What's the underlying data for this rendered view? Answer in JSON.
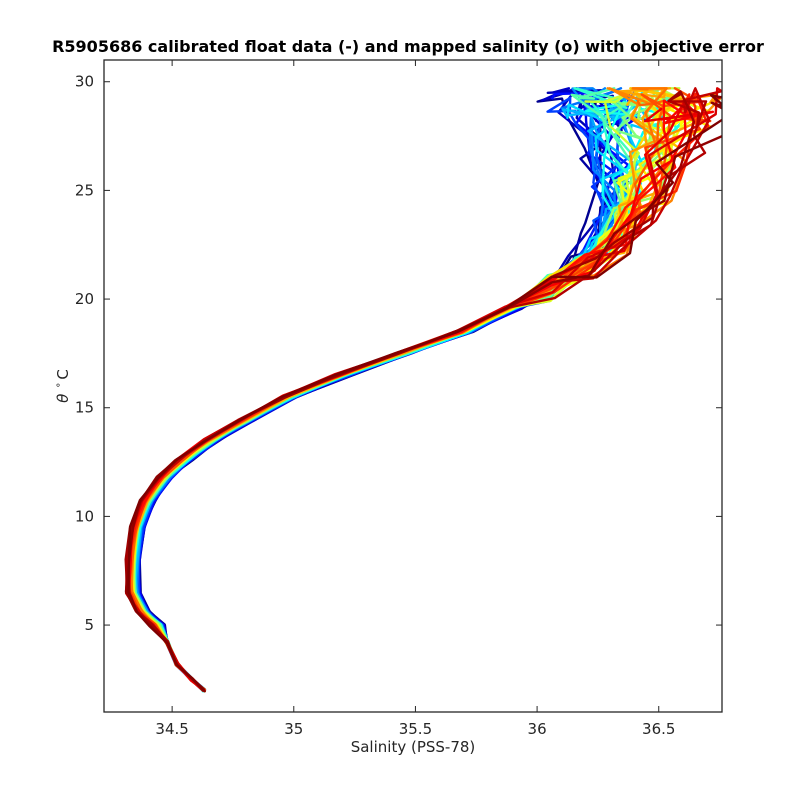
{
  "chart_data": {
    "type": "line",
    "title": "R5905686 calibrated float data (-) and mapped salinity (o) with objective error",
    "xlabel": "Salinity (PSS-78)",
    "ylabel_symbol": "θ",
    "ylabel_unit": "° C",
    "xlim": [
      34.22,
      36.76
    ],
    "ylim": [
      1.0,
      31.0
    ],
    "xticks": [
      34.5,
      35,
      35.5,
      36,
      36.5
    ],
    "xtick_labels": [
      "34.5",
      "35",
      "35.5",
      "36",
      "36.5"
    ],
    "yticks": [
      5,
      10,
      15,
      20,
      25,
      30
    ],
    "ytick_labels": [
      "5",
      "10",
      "15",
      "20",
      "25",
      "30"
    ],
    "grid": false,
    "colormap": "jet",
    "profile_count": 60,
    "reference_profile": {
      "salinity": [
        34.63,
        34.58,
        34.52,
        34.48,
        34.44,
        34.38,
        34.34,
        34.34,
        34.36,
        34.4,
        34.47,
        34.55,
        34.66,
        34.8,
        34.98,
        35.2,
        35.45,
        35.7,
        35.9,
        36.05,
        36.18,
        36.28,
        36.35,
        36.38,
        36.4,
        36.4
      ],
      "theta": [
        2.0,
        2.5,
        3.2,
        4.2,
        5.0,
        5.6,
        6.5,
        8.0,
        9.5,
        10.7,
        11.8,
        12.6,
        13.5,
        14.4,
        15.5,
        16.5,
        17.5,
        18.5,
        19.6,
        20.5,
        21.5,
        22.5,
        23.8,
        25.0,
        26.5,
        28.0
      ]
    },
    "surface_salinity_range_by_profile": [
      35.9,
      36.4,
      36.65
    ],
    "surface_theta_range": [
      21.5,
      29.5
    ]
  }
}
